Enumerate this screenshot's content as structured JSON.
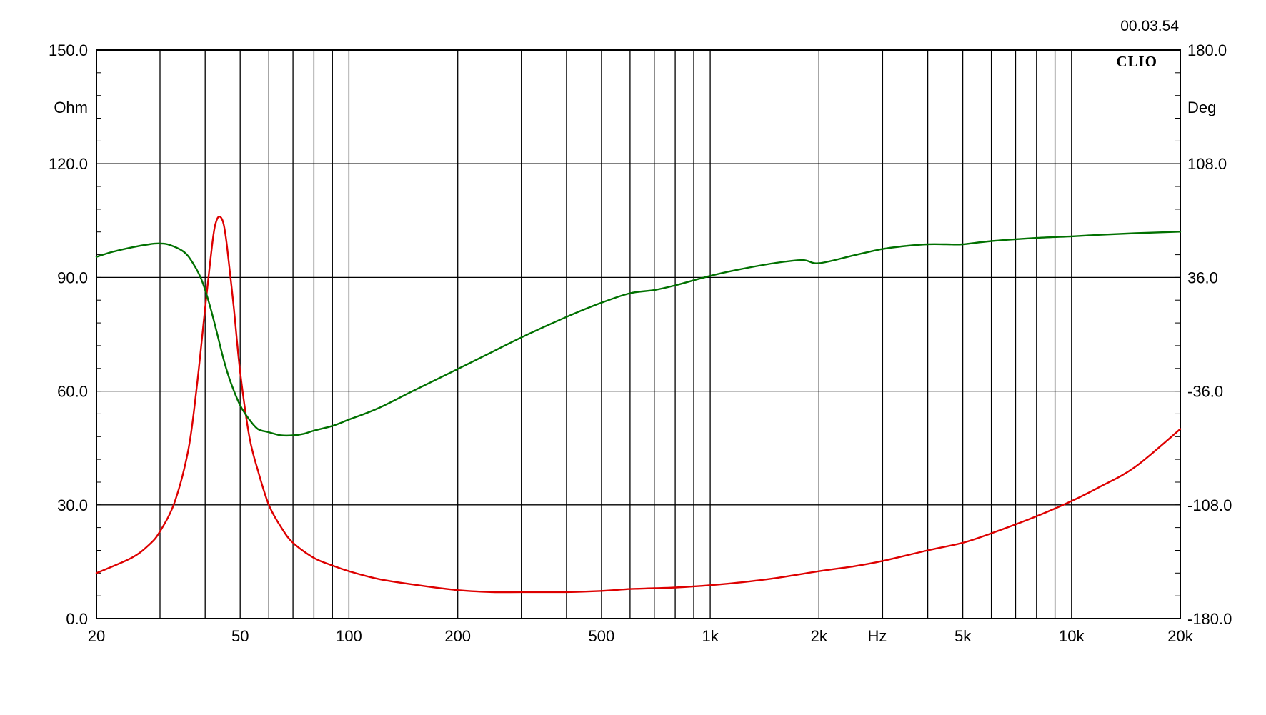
{
  "header": {
    "timestamp": "00.03.54",
    "brand": "CLIO"
  },
  "chart_data": {
    "type": "line",
    "title": "",
    "xscale": "log",
    "xlim": [
      20,
      20000
    ],
    "xlabel": "Hz",
    "x_tick_labels": [
      {
        "value": 20,
        "label": "20"
      },
      {
        "value": 50,
        "label": "50"
      },
      {
        "value": 100,
        "label": "100"
      },
      {
        "value": 200,
        "label": "200"
      },
      {
        "value": 500,
        "label": "500"
      },
      {
        "value": 1000,
        "label": "1k"
      },
      {
        "value": 2000,
        "label": "2k"
      },
      {
        "value": 5000,
        "label": "5k"
      },
      {
        "value": 10000,
        "label": "10k"
      },
      {
        "value": 20000,
        "label": "20k"
      }
    ],
    "y_left": {
      "unit": "Ohm",
      "ylim": [
        0,
        150
      ],
      "ticks": [
        "0.0",
        "30.0",
        "60.0",
        "90.0",
        "120.0",
        "150.0"
      ]
    },
    "y_right": {
      "unit": "Deg",
      "ylim": [
        -180,
        180
      ],
      "ticks": [
        "-180.0",
        "-108.0",
        "-36.0",
        "36.0",
        "108.0",
        "180.0"
      ]
    },
    "grid": true,
    "colors": {
      "impedance": "#dd0000",
      "phase": "#007000",
      "grid": "#000000"
    },
    "series": [
      {
        "key": "impedance",
        "axis": "left",
        "x": [
          20,
          25,
          28,
          30,
          33,
          36,
          38,
          40,
          42,
          43,
          44,
          45,
          46,
          48,
          50,
          53,
          56,
          60,
          65,
          70,
          80,
          90,
          100,
          120,
          150,
          200,
          250,
          300,
          400,
          500,
          600,
          700,
          800,
          1000,
          1200,
          1500,
          2000,
          2500,
          3000,
          4000,
          5000,
          6000,
          8000,
          10000,
          12000,
          15000,
          20000
        ],
        "values": [
          12,
          16,
          19.5,
          23,
          31,
          45,
          62,
          82,
          100,
          105,
          106,
          104,
          98,
          82,
          65,
          48,
          39,
          30,
          24,
          20,
          16,
          14,
          12.5,
          10.5,
          9,
          7.5,
          7,
          7,
          7,
          7.3,
          7.8,
          8,
          8.2,
          8.8,
          9.5,
          10.6,
          12.5,
          13.8,
          15.2,
          18,
          20,
          22.5,
          27,
          31,
          34.8,
          40,
          50
        ]
      },
      {
        "key": "phase",
        "axis": "right",
        "x": [
          20,
          22,
          25,
          28,
          30,
          32,
          35,
          37,
          39,
          41,
          43,
          45,
          47,
          50,
          53,
          56,
          60,
          65,
          70,
          75,
          80,
          90,
          100,
          120,
          150,
          200,
          250,
          300,
          400,
          500,
          600,
          700,
          800,
          1000,
          1200,
          1500,
          1800,
          2000,
          2500,
          3000,
          3500,
          4000,
          4500,
          5000,
          6000,
          8000,
          10000,
          12000,
          15000,
          20000
        ],
        "values": [
          49,
          52,
          55,
          57,
          57.5,
          56.5,
          52,
          45,
          35,
          20,
          2,
          -16,
          -30,
          -45,
          -54,
          -60,
          -62,
          -64,
          -64,
          -63,
          -61,
          -58,
          -54,
          -47,
          -36,
          -22,
          -11,
          -2,
          11,
          20,
          26,
          28,
          31,
          37,
          41,
          45,
          47,
          45,
          50,
          54,
          56,
          57,
          57,
          57,
          59,
          61,
          62,
          63,
          64,
          65
        ]
      }
    ]
  }
}
